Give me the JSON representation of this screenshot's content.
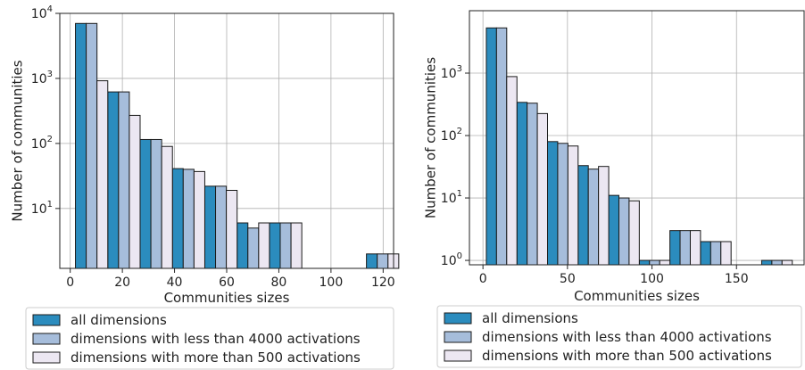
{
  "colors": {
    "all_dimensions": "#2b8cbe",
    "less_than_4000": "#a6bddb",
    "more_than_500": "#ece7f2",
    "bar_edge": "#1a1a1a",
    "grid": "#b0b0b0"
  },
  "chart_data": [
    {
      "type": "bar",
      "xlabel": "Communities sizes",
      "ylabel": "Number of communities",
      "yscale": "log",
      "xlim": [
        -4,
        124
      ],
      "ylim": [
        1.2,
        10000
      ],
      "grid": true,
      "legend_position": "below",
      "x_ticks": [
        0,
        20,
        40,
        60,
        80,
        100,
        120
      ],
      "y_ticks": [
        {
          "value": 10,
          "base": "10",
          "exp": "1"
        },
        {
          "value": 100,
          "base": "10",
          "exp": "2"
        },
        {
          "value": 1000,
          "base": "10",
          "exp": "3"
        },
        {
          "value": 10000,
          "base": "10",
          "exp": "4"
        }
      ],
      "bin_width": 12.4,
      "bin_starts": [
        2,
        14.4,
        26.8,
        39.2,
        51.6,
        64,
        76.4,
        88.8,
        101.2,
        113.6
      ],
      "series": [
        {
          "name": "all dimensions",
          "values": [
            7000,
            620,
            115,
            41,
            22,
            6,
            6,
            0,
            0,
            2
          ]
        },
        {
          "name": "dimensions with less than 4000 activations",
          "values": [
            7000,
            620,
            115,
            40,
            22,
            5,
            6,
            0,
            0,
            2
          ]
        },
        {
          "name": "dimensions with more than 500 activations",
          "values": [
            920,
            270,
            90,
            37,
            19,
            6,
            6,
            0,
            0,
            2
          ]
        }
      ]
    },
    {
      "type": "bar",
      "xlabel": "Communities sizes",
      "ylabel": "Number of communities",
      "yscale": "log",
      "xlim": [
        -8,
        190
      ],
      "ylim": [
        0.85,
        10000
      ],
      "grid": true,
      "legend_position": "below",
      "x_ticks": [
        0,
        50,
        100,
        150
      ],
      "y_ticks": [
        {
          "value": 1,
          "base": "10",
          "exp": "0"
        },
        {
          "value": 10,
          "base": "10",
          "exp": "1"
        },
        {
          "value": 100,
          "base": "10",
          "exp": "2"
        },
        {
          "value": 1000,
          "base": "10",
          "exp": "3"
        }
      ],
      "bin_width": 18.1,
      "bin_starts": [
        2,
        20.1,
        38.2,
        56.3,
        74.4,
        92.5,
        110.6,
        128.7,
        146.8,
        164.9
      ],
      "series": [
        {
          "name": "all dimensions",
          "values": [
            5300,
            340,
            80,
            33,
            11,
            1,
            3,
            2,
            0,
            1
          ]
        },
        {
          "name": "dimensions with less than 4000 activations",
          "values": [
            5300,
            330,
            75,
            29,
            10,
            1,
            3,
            2,
            0,
            1
          ]
        },
        {
          "name": "dimensions with more than 500 activations",
          "values": [
            880,
            225,
            68,
            32,
            9,
            1,
            3,
            2,
            0,
            1
          ]
        }
      ]
    }
  ]
}
